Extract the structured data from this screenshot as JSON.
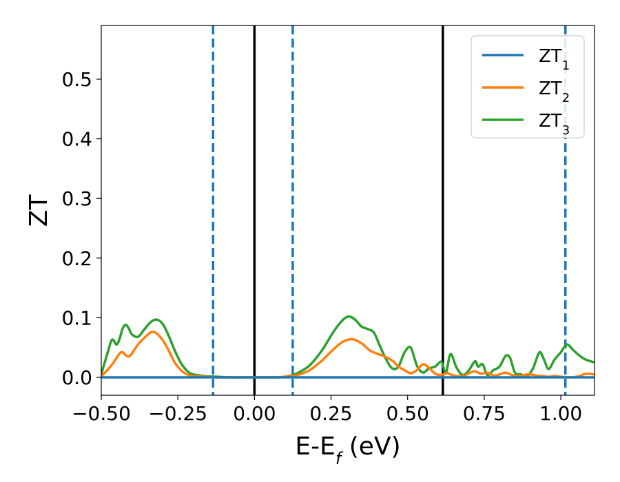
{
  "chart_data": {
    "type": "line",
    "xlabel": "E-E",
    "xlabel_sub": "f",
    "xlabel_unit": " (eV)",
    "ylabel": "ZT",
    "xlim": [
      -0.5,
      1.11
    ],
    "ylim": [
      -0.03,
      0.59
    ],
    "x_ticks": [
      -0.5,
      -0.25,
      0.0,
      0.25,
      0.5,
      0.75,
      1.0
    ],
    "x_tick_labels": [
      "−0.50",
      "−0.25",
      "0.00",
      "0.25",
      "0.50",
      "0.75",
      "1.00"
    ],
    "y_ticks": [
      0.0,
      0.1,
      0.2,
      0.3,
      0.4,
      0.5
    ],
    "y_tick_labels": [
      "0.0",
      "0.1",
      "0.2",
      "0.3",
      "0.4",
      "0.5"
    ],
    "grid": false,
    "legend_position": "top-right",
    "vlines": [
      {
        "x": -0.135,
        "style": "dashed",
        "color": "#1f77b4"
      },
      {
        "x": 0.0,
        "style": "solid",
        "color": "#000000"
      },
      {
        "x": 0.125,
        "style": "dashed",
        "color": "#1f77b4"
      },
      {
        "x": 0.615,
        "style": "solid",
        "color": "#000000"
      },
      {
        "x": 1.015,
        "style": "dashed",
        "color": "#1f77b4"
      }
    ],
    "series": [
      {
        "name": "ZT",
        "sub": "1",
        "color": "#1f77b4",
        "x": [
          -0.5,
          1.11
        ],
        "y": [
          0.0,
          0.0
        ]
      },
      {
        "name": "ZT",
        "sub": "2",
        "color": "#ff7f0e",
        "x": [
          -0.5,
          -0.48,
          -0.46,
          -0.44,
          -0.43,
          -0.42,
          -0.41,
          -0.4,
          -0.38,
          -0.36,
          -0.34,
          -0.33,
          -0.32,
          -0.3,
          -0.28,
          -0.26,
          -0.24,
          -0.22,
          -0.2,
          -0.16,
          -0.12,
          -0.08,
          -0.04,
          0.0,
          0.05,
          0.1,
          0.14,
          0.18,
          0.22,
          0.26,
          0.29,
          0.32,
          0.35,
          0.38,
          0.42,
          0.45,
          0.47,
          0.49,
          0.51,
          0.53,
          0.55,
          0.57,
          0.59,
          0.61,
          0.63,
          0.65,
          0.68,
          0.7,
          0.72,
          0.74,
          0.76,
          0.78,
          0.8,
          0.82,
          0.84,
          0.86,
          0.88,
          0.9,
          0.92,
          0.94,
          0.96,
          0.98,
          1.0,
          1.03,
          1.06,
          1.08,
          1.11
        ],
        "y": [
          0.002,
          0.012,
          0.025,
          0.04,
          0.042,
          0.037,
          0.035,
          0.04,
          0.055,
          0.066,
          0.075,
          0.076,
          0.074,
          0.063,
          0.045,
          0.025,
          0.012,
          0.005,
          0.002,
          0.001,
          0.0,
          0.0,
          0.0,
          0.0,
          0.0,
          0.001,
          0.004,
          0.012,
          0.028,
          0.048,
          0.06,
          0.064,
          0.057,
          0.044,
          0.036,
          0.028,
          0.018,
          0.012,
          0.007,
          0.012,
          0.022,
          0.016,
          0.006,
          0.004,
          0.007,
          0.003,
          0.002,
          0.007,
          0.01,
          0.006,
          0.008,
          0.003,
          0.005,
          0.008,
          0.004,
          0.002,
          0.004,
          0.005,
          0.003,
          0.002,
          0.001,
          0.002,
          0.001,
          0.0,
          0.002,
          0.006,
          0.005
        ]
      },
      {
        "name": "ZT",
        "sub": "3",
        "color": "#2ca02c",
        "x": [
          -0.5,
          -0.48,
          -0.465,
          -0.45,
          -0.44,
          -0.43,
          -0.42,
          -0.41,
          -0.4,
          -0.38,
          -0.36,
          -0.34,
          -0.32,
          -0.3,
          -0.28,
          -0.26,
          -0.24,
          -0.22,
          -0.2,
          -0.16,
          -0.12,
          -0.08,
          -0.04,
          0.0,
          0.05,
          0.1,
          0.14,
          0.18,
          0.22,
          0.26,
          0.29,
          0.31,
          0.33,
          0.35,
          0.37,
          0.39,
          0.41,
          0.43,
          0.45,
          0.47,
          0.49,
          0.51,
          0.53,
          0.55,
          0.57,
          0.59,
          0.61,
          0.625,
          0.64,
          0.66,
          0.68,
          0.7,
          0.72,
          0.73,
          0.745,
          0.76,
          0.78,
          0.8,
          0.82,
          0.835,
          0.85,
          0.87,
          0.89,
          0.91,
          0.93,
          0.945,
          0.96,
          0.98,
          1.0,
          1.02,
          1.04,
          1.06,
          1.08,
          1.11
        ],
        "y": [
          0.005,
          0.04,
          0.063,
          0.055,
          0.065,
          0.082,
          0.088,
          0.082,
          0.072,
          0.068,
          0.08,
          0.092,
          0.097,
          0.09,
          0.07,
          0.045,
          0.024,
          0.011,
          0.005,
          0.002,
          0.001,
          0.0,
          0.0,
          0.0,
          0.0,
          0.001,
          0.007,
          0.02,
          0.045,
          0.078,
          0.097,
          0.102,
          0.096,
          0.085,
          0.081,
          0.075,
          0.052,
          0.03,
          0.015,
          0.018,
          0.042,
          0.05,
          0.02,
          0.008,
          0.015,
          0.018,
          0.026,
          0.008,
          0.039,
          0.016,
          0.004,
          0.012,
          0.027,
          0.018,
          0.022,
          0.004,
          0.012,
          0.018,
          0.036,
          0.032,
          0.008,
          0.005,
          0.002,
          0.016,
          0.042,
          0.03,
          0.014,
          0.03,
          0.042,
          0.055,
          0.046,
          0.037,
          0.03,
          0.025
        ]
      }
    ]
  }
}
